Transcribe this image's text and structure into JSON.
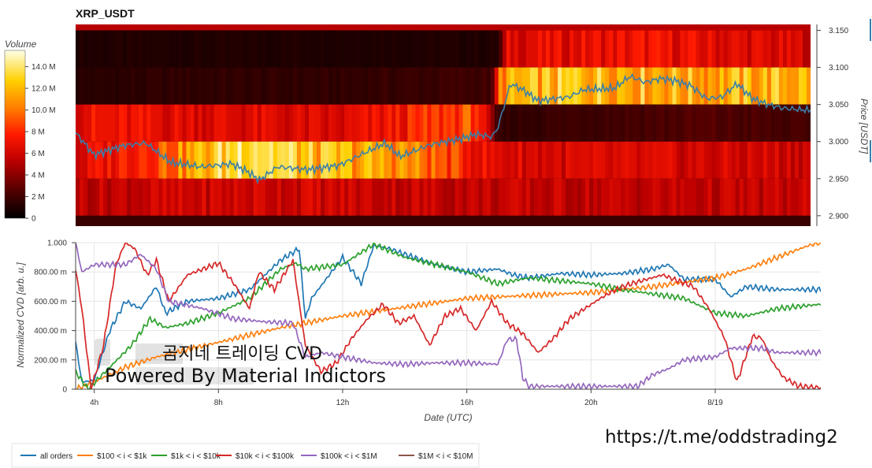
{
  "title": "XRP_USDT",
  "colorbar": {
    "label": "Volume",
    "ticks": [
      {
        "value": 0,
        "label": "0"
      },
      {
        "value": 2,
        "label": "2 M"
      },
      {
        "value": 4,
        "label": "4 M"
      },
      {
        "value": 6,
        "label": "6 M"
      },
      {
        "value": 8,
        "label": "8 M"
      },
      {
        "value": 10,
        "label": "10.0 M"
      },
      {
        "value": 12,
        "label": "12.0 M"
      },
      {
        "value": 14,
        "label": "14.0 M"
      }
    ],
    "range": [
      0,
      15.5
    ]
  },
  "watermark": {
    "line1": "곰지네 트레이딩 CVD",
    "line2": "Powered By Material Indictors"
  },
  "url_text": "https://t.me/oddstrading2",
  "chart_data": [
    {
      "type": "heatmap",
      "title": "XRP_USDT",
      "x_range_hours": [
        3.4,
        27.4
      ],
      "ylabel": "Price [USDT]",
      "ylim": [
        2.886,
        3.158
      ],
      "yticks": [
        {
          "value": 2.9,
          "label": "2.900"
        },
        {
          "value": 2.95,
          "label": "2.950"
        },
        {
          "value": 3.0,
          "label": "3.000"
        },
        {
          "value": 3.05,
          "label": "3.050"
        },
        {
          "value": 3.1,
          "label": "3.100"
        },
        {
          "value": 3.15,
          "label": "3.150"
        }
      ],
      "price_bands": [
        {
          "low": 3.1,
          "high": 3.15,
          "label": "3.100-3.150"
        },
        {
          "low": 3.05,
          "high": 3.1,
          "label": "3.050-3.100"
        },
        {
          "low": 3.0,
          "high": 3.05,
          "label": "3.000-3.050"
        },
        {
          "low": 2.95,
          "high": 3.0,
          "label": "2.950-3.000"
        },
        {
          "low": 2.9,
          "high": 2.95,
          "label": "2.900-2.950"
        }
      ],
      "band_volume_profile": [
        [
          [
            3.4,
            1.0
          ],
          [
            17.2,
            1.0
          ],
          [
            17.5,
            6.5
          ],
          [
            22.0,
            7.0
          ],
          [
            27.4,
            6.0
          ]
        ],
        [
          [
            3.4,
            1.2
          ],
          [
            7.0,
            1.5
          ],
          [
            12.0,
            1.5
          ],
          [
            17.0,
            2.0
          ],
          [
            17.3,
            11.0
          ],
          [
            20.0,
            12.5
          ],
          [
            24.0,
            11.5
          ],
          [
            27.4,
            12.0
          ]
        ],
        [
          [
            3.4,
            7.0
          ],
          [
            8.0,
            6.5
          ],
          [
            12.0,
            6.0
          ],
          [
            16.5,
            9.0
          ],
          [
            17.2,
            1.5
          ],
          [
            20.0,
            2.0
          ],
          [
            24.0,
            2.5
          ],
          [
            27.4,
            2.0
          ]
        ],
        [
          [
            3.4,
            6.0
          ],
          [
            6.0,
            9.0
          ],
          [
            8.5,
            13.5
          ],
          [
            9.0,
            15.0
          ],
          [
            11.0,
            12.0
          ],
          [
            14.0,
            11.0
          ],
          [
            17.0,
            6.5
          ],
          [
            20.0,
            6.0
          ],
          [
            27.4,
            6.0
          ]
        ],
        [
          [
            3.4,
            5.5
          ],
          [
            10.0,
            6.0
          ],
          [
            17.0,
            5.5
          ],
          [
            27.4,
            5.5
          ]
        ]
      ],
      "price_series": {
        "name": "Price",
        "points": [
          [
            3.4,
            3.012
          ],
          [
            4.0,
            2.982
          ],
          [
            5.0,
            2.995
          ],
          [
            5.7,
            2.998
          ],
          [
            6.5,
            2.972
          ],
          [
            7.5,
            2.966
          ],
          [
            8.5,
            2.97
          ],
          [
            9.0,
            2.96
          ],
          [
            9.4,
            2.948
          ],
          [
            10.0,
            2.966
          ],
          [
            11.0,
            2.962
          ],
          [
            12.0,
            2.968
          ],
          [
            13.5,
            2.998
          ],
          [
            14.0,
            2.98
          ],
          [
            15.0,
            2.996
          ],
          [
            16.0,
            3.004
          ],
          [
            16.5,
            3.01
          ],
          [
            17.0,
            3.006
          ],
          [
            17.2,
            3.02
          ],
          [
            17.6,
            3.078
          ],
          [
            18.0,
            3.07
          ],
          [
            18.5,
            3.055
          ],
          [
            19.5,
            3.06
          ],
          [
            20.0,
            3.07
          ],
          [
            21.0,
            3.072
          ],
          [
            21.5,
            3.088
          ],
          [
            22.0,
            3.08
          ],
          [
            22.5,
            3.085
          ],
          [
            23.0,
            3.082
          ],
          [
            23.5,
            3.075
          ],
          [
            24.0,
            3.058
          ],
          [
            24.5,
            3.06
          ],
          [
            25.0,
            3.078
          ],
          [
            25.5,
            3.058
          ],
          [
            26.0,
            3.05
          ],
          [
            26.5,
            3.045
          ],
          [
            27.4,
            3.042
          ]
        ]
      }
    },
    {
      "type": "line",
      "xlabel": "Date (UTC)",
      "ylabel": "Normalized CVD [arb. u.]",
      "xlim": [
        3.4,
        27.4
      ],
      "ylim": [
        0,
        1.0
      ],
      "xticks": [
        {
          "value": 4,
          "label": "4h"
        },
        {
          "value": 8,
          "label": "8h"
        },
        {
          "value": 12,
          "label": "12h"
        },
        {
          "value": 16,
          "label": "16h"
        },
        {
          "value": 20,
          "label": "20h"
        },
        {
          "value": 24,
          "label": "8/19"
        }
      ],
      "yticks": [
        {
          "value": 0,
          "label": "0"
        },
        {
          "value": 0.2,
          "label": "200.00 m"
        },
        {
          "value": 0.4,
          "label": "400.00 m"
        },
        {
          "value": 0.6,
          "label": "600.00 m"
        },
        {
          "value": 0.8,
          "label": "800.00 m"
        },
        {
          "value": 1.0,
          "label": "1.000"
        }
      ],
      "grid": true,
      "legend_position": "bottom-left",
      "series": [
        {
          "name": "all orders",
          "color": "#1f77b4",
          "points": [
            [
              3.4,
              0.32
            ],
            [
              3.6,
              0.05
            ],
            [
              4.0,
              0.06
            ],
            [
              4.5,
              0.4
            ],
            [
              5.0,
              0.6
            ],
            [
              5.5,
              0.55
            ],
            [
              6.0,
              0.7
            ],
            [
              6.3,
              0.52
            ],
            [
              7.0,
              0.6
            ],
            [
              8.0,
              0.62
            ],
            [
              9.0,
              0.68
            ],
            [
              10.0,
              0.88
            ],
            [
              10.6,
              0.96
            ],
            [
              10.8,
              0.48
            ],
            [
              11.0,
              0.62
            ],
            [
              12.0,
              0.9
            ],
            [
              12.6,
              0.72
            ],
            [
              13.0,
              0.98
            ],
            [
              13.5,
              0.96
            ],
            [
              14.0,
              0.92
            ],
            [
              15.0,
              0.85
            ],
            [
              16.0,
              0.8
            ],
            [
              17.0,
              0.82
            ],
            [
              17.5,
              0.78
            ],
            [
              18.0,
              0.76
            ],
            [
              19.0,
              0.79
            ],
            [
              20.0,
              0.78
            ],
            [
              21.0,
              0.79
            ],
            [
              22.0,
              0.82
            ],
            [
              22.5,
              0.85
            ],
            [
              23.0,
              0.75
            ],
            [
              24.0,
              0.75
            ],
            [
              24.5,
              0.63
            ],
            [
              25.0,
              0.7
            ],
            [
              26.0,
              0.68
            ],
            [
              27.4,
              0.68
            ]
          ]
        },
        {
          "name": "$100 < i < $1k",
          "color": "#ff7f0e",
          "points": [
            [
              3.4,
              0.0
            ],
            [
              4.0,
              0.05
            ],
            [
              5.0,
              0.15
            ],
            [
              6.0,
              0.22
            ],
            [
              8.0,
              0.32
            ],
            [
              10.0,
              0.42
            ],
            [
              12.0,
              0.5
            ],
            [
              14.0,
              0.56
            ],
            [
              16.0,
              0.62
            ],
            [
              18.0,
              0.64
            ],
            [
              20.0,
              0.66
            ],
            [
              22.0,
              0.7
            ],
            [
              24.0,
              0.76
            ],
            [
              25.0,
              0.82
            ],
            [
              26.0,
              0.9
            ],
            [
              27.0,
              0.98
            ],
            [
              27.4,
              1.0
            ]
          ]
        },
        {
          "name": "$1k < i < $10k",
          "color": "#2ca02c",
          "points": [
            [
              3.4,
              0.12
            ],
            [
              3.8,
              0.0
            ],
            [
              4.5,
              0.15
            ],
            [
              5.2,
              0.3
            ],
            [
              5.8,
              0.48
            ],
            [
              6.3,
              0.42
            ],
            [
              7.0,
              0.45
            ],
            [
              8.0,
              0.52
            ],
            [
              9.0,
              0.62
            ],
            [
              10.0,
              0.82
            ],
            [
              10.5,
              0.86
            ],
            [
              10.8,
              0.82
            ],
            [
              12.0,
              0.85
            ],
            [
              13.0,
              0.99
            ],
            [
              14.0,
              0.9
            ],
            [
              15.0,
              0.85
            ],
            [
              16.0,
              0.8
            ],
            [
              17.0,
              0.72
            ],
            [
              18.0,
              0.76
            ],
            [
              20.0,
              0.72
            ],
            [
              21.0,
              0.68
            ],
            [
              22.0,
              0.65
            ],
            [
              23.0,
              0.62
            ],
            [
              24.0,
              0.52
            ],
            [
              25.0,
              0.5
            ],
            [
              26.0,
              0.55
            ],
            [
              27.4,
              0.58
            ]
          ]
        },
        {
          "name": "$10k < i < $100k",
          "color": "#d62728",
          "points": [
            [
              3.4,
              0.82
            ],
            [
              3.6,
              0.55
            ],
            [
              3.9,
              0.0
            ],
            [
              4.3,
              0.3
            ],
            [
              4.7,
              0.85
            ],
            [
              5.0,
              1.0
            ],
            [
              5.3,
              0.96
            ],
            [
              5.7,
              0.78
            ],
            [
              6.0,
              0.88
            ],
            [
              6.4,
              0.6
            ],
            [
              7.0,
              0.78
            ],
            [
              7.5,
              0.82
            ],
            [
              8.0,
              0.86
            ],
            [
              8.5,
              0.72
            ],
            [
              9.0,
              0.55
            ],
            [
              9.3,
              0.8
            ],
            [
              9.8,
              0.68
            ],
            [
              10.4,
              0.88
            ],
            [
              10.8,
              0.3
            ],
            [
              11.3,
              0.12
            ],
            [
              11.8,
              0.18
            ],
            [
              12.3,
              0.35
            ],
            [
              12.8,
              0.48
            ],
            [
              13.3,
              0.58
            ],
            [
              13.8,
              0.45
            ],
            [
              14.3,
              0.5
            ],
            [
              14.8,
              0.3
            ],
            [
              15.3,
              0.5
            ],
            [
              15.8,
              0.55
            ],
            [
              16.3,
              0.4
            ],
            [
              16.8,
              0.6
            ],
            [
              17.3,
              0.45
            ],
            [
              17.8,
              0.38
            ],
            [
              18.3,
              0.25
            ],
            [
              18.8,
              0.35
            ],
            [
              19.3,
              0.48
            ],
            [
              19.8,
              0.55
            ],
            [
              20.3,
              0.62
            ],
            [
              20.8,
              0.68
            ],
            [
              21.3,
              0.72
            ],
            [
              21.8,
              0.75
            ],
            [
              22.3,
              0.78
            ],
            [
              22.8,
              0.74
            ],
            [
              23.3,
              0.7
            ],
            [
              23.8,
              0.55
            ],
            [
              24.3,
              0.35
            ],
            [
              24.7,
              0.05
            ],
            [
              25.2,
              0.36
            ],
            [
              25.5,
              0.35
            ],
            [
              25.8,
              0.2
            ],
            [
              26.2,
              0.08
            ],
            [
              26.7,
              0.02
            ],
            [
              27.4,
              0.01
            ]
          ]
        },
        {
          "name": "$100k < i < $1M",
          "color": "#9467bd",
          "points": [
            [
              3.4,
              1.0
            ],
            [
              3.6,
              0.8
            ],
            [
              4.0,
              0.85
            ],
            [
              5.0,
              0.85
            ],
            [
              5.5,
              0.92
            ],
            [
              6.0,
              0.82
            ],
            [
              6.4,
              0.6
            ],
            [
              7.5,
              0.55
            ],
            [
              8.5,
              0.48
            ],
            [
              9.5,
              0.46
            ],
            [
              10.4,
              0.45
            ],
            [
              10.8,
              0.22
            ],
            [
              11.3,
              0.25
            ],
            [
              12.0,
              0.22
            ],
            [
              13.0,
              0.18
            ],
            [
              14.0,
              0.17
            ],
            [
              15.0,
              0.18
            ],
            [
              16.0,
              0.18
            ],
            [
              17.0,
              0.17
            ],
            [
              17.3,
              0.34
            ],
            [
              17.6,
              0.34
            ],
            [
              17.8,
              0.08
            ],
            [
              18.0,
              0.02
            ],
            [
              18.5,
              0.02
            ],
            [
              20.0,
              0.02
            ],
            [
              21.5,
              0.02
            ],
            [
              22.0,
              0.1
            ],
            [
              22.5,
              0.14
            ],
            [
              23.0,
              0.2
            ],
            [
              24.0,
              0.22
            ],
            [
              24.5,
              0.28
            ],
            [
              25.5,
              0.28
            ],
            [
              26.0,
              0.25
            ],
            [
              27.4,
              0.25
            ]
          ]
        },
        {
          "name": "$1M < i < $10M",
          "color": "#8c564b",
          "points": []
        }
      ]
    }
  ]
}
